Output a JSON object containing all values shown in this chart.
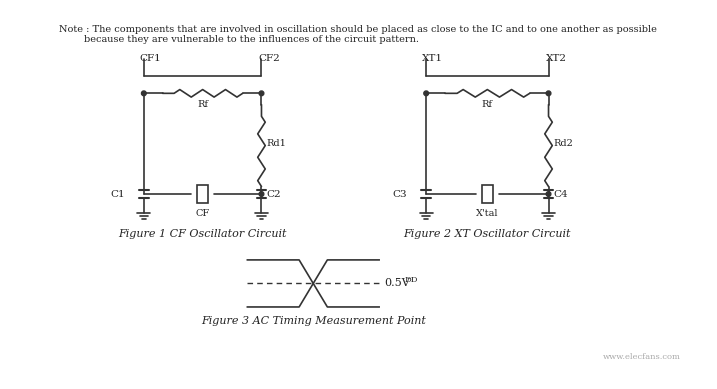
{
  "note_text": "Note : The components that are involved in oscillation should be placed as close to the IC and to one another as possible\n        because they are vulnerable to the influences of the circuit pattern.",
  "fig1_caption": "Figure 1 CF Oscillator Circuit",
  "fig2_caption": "Figure 2 XT Oscillator Circuit",
  "fig3_caption": "Figure 3 AC Timing Measurement Point",
  "label_05vdd": "0.5V",
  "label_DD": "DD",
  "background_color": "#ffffff",
  "line_color": "#333333",
  "text_color": "#222222"
}
